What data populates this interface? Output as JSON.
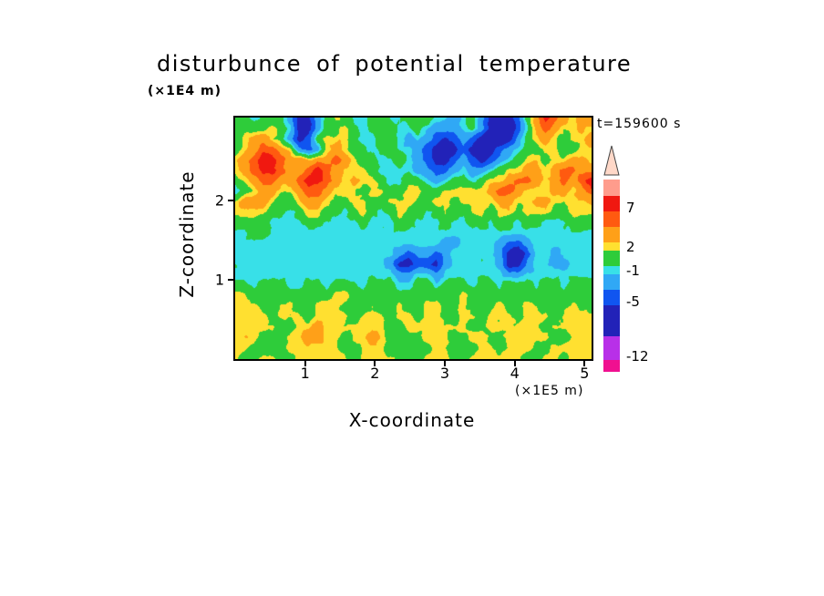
{
  "chart_data": {
    "type": "heatmap",
    "title": "disturbunce of potential temperature",
    "time_label": "t=159600 s",
    "x_axis": {
      "label": "X-coordinate",
      "unit": "(×1E5 m)",
      "ticks": [
        1,
        2,
        3,
        4,
        5
      ],
      "range": [
        0,
        5.1
      ]
    },
    "y_axis": {
      "label": "Z-coordinate",
      "unit": "(×1E4 m)",
      "ticks": [
        1,
        2
      ],
      "range": [
        0,
        3.05
      ]
    },
    "value_label": "potential temperature disturbance",
    "colorbar_tick_values": [
      7,
      2,
      -1,
      -5,
      -12
    ],
    "level_bounds": [
      -12,
      -9,
      -5,
      -3,
      -1,
      0,
      2,
      3,
      5,
      7,
      9
    ],
    "level_colors": [
      "#F01090",
      "#B830E8",
      "#2222B8",
      "#1055F0",
      "#30A8F5",
      "#38E0E8",
      "#2ECC3A",
      "#FFE030",
      "#FFA018",
      "#FF5A10",
      "#F01810",
      "#FF9C8C"
    ],
    "colorbar": {
      "tip_color": "#FFD8C8",
      "segments": [
        {
          "color": "#FF9C8C",
          "height": 18
        },
        {
          "color": "#F01810",
          "height": 17
        },
        {
          "color": "#FF5A10",
          "height": 17
        },
        {
          "color": "#FFA018",
          "height": 17
        },
        {
          "color": "#FFE030",
          "height": 9
        },
        {
          "color": "#2ECC3A",
          "height": 17
        },
        {
          "color": "#38E0E8",
          "height": 9
        },
        {
          "color": "#30A8F5",
          "height": 17
        },
        {
          "color": "#1055F0",
          "height": 17
        },
        {
          "color": "#2222B8",
          "height": 34
        },
        {
          "color": "#B830E8",
          "height": 26
        },
        {
          "color": "#F01090",
          "height": 13
        }
      ],
      "tick_labels": [
        {
          "label": "7",
          "offset": 35
        },
        {
          "label": "2",
          "offset": 78
        },
        {
          "label": "-1",
          "offset": 104
        },
        {
          "label": "-5",
          "offset": 138
        },
        {
          "label": "-12",
          "offset": 198
        }
      ]
    },
    "grid": {
      "cols": 40,
      "rows": 24,
      "description": "approx field values, rows top(z=3.05) to bottom(z=0), cols x=0..5.1",
      "values": [
        [
          1,
          1,
          -0.5,
          1,
          1,
          1,
          -2,
          -6,
          -6,
          -2,
          1,
          2.5,
          1,
          -0.5,
          -0.5,
          1,
          1,
          -0.5,
          -0.5,
          1,
          1,
          1,
          -0.5,
          -0.5,
          -2,
          -0.5,
          1,
          -2,
          -6,
          -8,
          -6,
          -4,
          1,
          4,
          8,
          6,
          4,
          2.5,
          4,
          4
        ],
        [
          1,
          1,
          1,
          1,
          2.5,
          1,
          -0.5,
          -6,
          -6,
          -2,
          1,
          1,
          2.5,
          1,
          -0.5,
          1,
          1,
          1,
          -0.5,
          -0.5,
          1,
          -0.5,
          -2,
          -2,
          -2,
          -0.5,
          1,
          -2,
          -6,
          -8,
          -8,
          -4,
          -0.5,
          4,
          6,
          4,
          2.5,
          2.5,
          4,
          2.5
        ],
        [
          1,
          2.5,
          4,
          4,
          2.5,
          1,
          -2,
          -6,
          -4,
          1,
          2.5,
          2.5,
          2.5,
          1,
          -0.5,
          -0.5,
          1,
          1,
          -0.5,
          -2,
          -0.5,
          -2,
          -4,
          -6,
          -4,
          -2,
          -4,
          -6,
          -8,
          -8,
          -6,
          -2,
          1,
          2.5,
          4,
          2.5,
          1,
          2.5,
          2.5,
          4
        ],
        [
          1,
          2.5,
          4,
          6,
          6,
          4,
          2.5,
          -2,
          -4,
          -2,
          2.5,
          4,
          2.5,
          1,
          1,
          -0.5,
          1,
          1,
          -0.5,
          -0.5,
          -2,
          -4,
          -6,
          -8,
          -6,
          -4,
          -6,
          -8,
          -6,
          -4,
          -2,
          -0.5,
          1,
          1,
          2.5,
          2.5,
          1,
          1,
          2.5,
          2.5
        ],
        [
          2.5,
          4,
          6,
          8,
          8,
          6,
          4,
          4,
          2.5,
          4,
          4,
          6,
          4,
          2.5,
          1,
          1,
          -0.5,
          -0.5,
          1,
          -0.5,
          -2,
          -4,
          -6,
          -6,
          -4,
          -2,
          -4,
          -6,
          -4,
          -2,
          -0.5,
          1,
          2.5,
          2.5,
          1,
          2.5,
          2.5,
          4,
          4,
          2.5
        ],
        [
          2.5,
          4,
          6,
          8,
          8,
          6,
          4,
          4,
          6,
          8,
          6,
          4,
          2.5,
          2.5,
          2.5,
          1,
          -0.5,
          -0.5,
          -0.5,
          -0.5,
          -2,
          -2,
          -4,
          -4,
          -2,
          -0.5,
          -2,
          -2,
          -0.5,
          1,
          2.5,
          2.5,
          4,
          4,
          2.5,
          4,
          6,
          6,
          4,
          4
        ],
        [
          1,
          2.5,
          4,
          6,
          6,
          4,
          4,
          6,
          8,
          8,
          6,
          4,
          2.5,
          4,
          2.5,
          2.5,
          1,
          -0.5,
          -0.5,
          1,
          1,
          -0.5,
          -2,
          -0.5,
          1,
          1,
          -0.5,
          1,
          2.5,
          2.5,
          4,
          6,
          6,
          4,
          2.5,
          4,
          6,
          4,
          6,
          8
        ],
        [
          -0.5,
          1,
          2.5,
          4,
          4,
          2.5,
          2.5,
          4,
          6,
          6,
          4,
          2.5,
          2.5,
          2.5,
          1,
          2.5,
          2.5,
          1,
          1,
          2.5,
          2.5,
          1,
          1,
          2.5,
          2.5,
          2.5,
          2.5,
          2.5,
          4,
          6,
          6,
          4,
          2.5,
          2.5,
          2.5,
          4,
          4,
          2.5,
          4,
          6
        ],
        [
          2.5,
          4,
          4,
          4,
          2.5,
          1,
          1,
          2.5,
          4,
          4,
          2.5,
          1,
          1,
          2.5,
          2.5,
          1,
          1,
          2.5,
          2.5,
          2.5,
          1,
          1,
          2.5,
          2.5,
          1,
          2.5,
          2.5,
          2.5,
          2.5,
          4,
          4,
          2.5,
          2.5,
          4,
          4,
          2.5,
          2.5,
          2.5,
          2.5,
          4
        ],
        [
          2.5,
          2.5,
          2.5,
          2.5,
          1,
          1,
          -0.5,
          1,
          2.5,
          2.5,
          1,
          1,
          -0.5,
          1,
          2.5,
          1,
          -0.5,
          1,
          2.5,
          1,
          1,
          -0.5,
          1,
          2.5,
          1,
          1,
          2.5,
          2.5,
          1,
          2.5,
          2.5,
          1,
          2.5,
          2.5,
          2.5,
          1,
          1,
          2.5,
          2.5,
          2.5
        ],
        [
          1,
          1,
          1,
          1,
          -0.5,
          -0.5,
          -0.5,
          -0.5,
          1,
          1,
          -0.5,
          -0.5,
          -0.5,
          -0.5,
          1,
          -0.5,
          -0.5,
          -0.5,
          1,
          1,
          -0.5,
          -0.5,
          -0.5,
          1,
          -0.5,
          -0.5,
          1,
          1,
          -0.5,
          1,
          1,
          -0.5,
          1,
          1,
          -0.5,
          -0.5,
          -0.5,
          1,
          1,
          1
        ],
        [
          -0.5,
          -0.5,
          1,
          1,
          -0.5,
          -0.5,
          -0.5,
          -0.5,
          -0.5,
          -0.5,
          -0.5,
          -0.5,
          -0.5,
          -0.5,
          -0.5,
          -0.5,
          -0.5,
          -0.5,
          -0.5,
          -0.5,
          -0.5,
          -0.5,
          -0.5,
          -0.5,
          -0.5,
          -0.5,
          -0.5,
          -0.5,
          -0.5,
          -0.5,
          -0.5,
          -0.5,
          -0.5,
          -0.5,
          -0.5,
          -0.5,
          -0.5,
          -0.5,
          -0.5,
          -0.5
        ],
        [
          -0.5,
          -0.5,
          -0.5,
          -0.5,
          -0.5,
          -0.5,
          -0.5,
          -0.5,
          -0.5,
          -0.5,
          -0.5,
          -0.5,
          -0.5,
          -0.5,
          -0.5,
          -0.5,
          -0.5,
          -0.5,
          -0.5,
          -0.5,
          -0.5,
          -0.5,
          -0.5,
          -2,
          -2,
          -0.5,
          -0.5,
          -0.5,
          -0.5,
          -2,
          -4,
          -4,
          -2,
          -0.5,
          -0.5,
          -0.5,
          -0.5,
          -0.5,
          -0.5,
          -0.5
        ],
        [
          -0.5,
          -0.5,
          -0.5,
          -0.5,
          -0.5,
          -0.5,
          -0.5,
          -0.5,
          -0.5,
          -0.5,
          -0.5,
          -0.5,
          -0.5,
          -0.5,
          -0.5,
          -0.5,
          -0.5,
          -0.5,
          -2,
          -4,
          -2,
          -2,
          -4,
          -2,
          -0.5,
          -0.5,
          -0.5,
          -0.5,
          -0.5,
          -2,
          -6,
          -8,
          -4,
          -0.5,
          -0.5,
          -2,
          -0.5,
          -0.5,
          -0.5,
          -0.5
        ],
        [
          -0.5,
          -0.5,
          -0.5,
          -0.5,
          -0.5,
          -0.5,
          -0.5,
          -0.5,
          -0.5,
          -0.5,
          -0.5,
          -0.5,
          -0.5,
          -0.5,
          -0.5,
          -0.5,
          -0.5,
          -2,
          -6,
          -6,
          -4,
          -4,
          -6,
          -2,
          -0.5,
          -0.5,
          -0.5,
          -0.5,
          -0.5,
          -2,
          -6,
          -6,
          -2,
          -0.5,
          -0.5,
          -2,
          -2,
          -0.5,
          -0.5,
          -0.5
        ],
        [
          -0.5,
          -0.5,
          -0.5,
          -0.5,
          -0.5,
          -0.5,
          -0.5,
          -0.5,
          -0.5,
          -0.5,
          -0.5,
          -0.5,
          -0.5,
          -0.5,
          -0.5,
          -0.5,
          -0.5,
          -0.5,
          -2,
          -2,
          -0.5,
          -0.5,
          -2,
          -0.5,
          -0.5,
          -0.5,
          -0.5,
          -0.5,
          -0.5,
          -0.5,
          -2,
          -2,
          -0.5,
          -0.5,
          -0.5,
          -0.5,
          -0.5,
          -0.5,
          -0.5,
          -0.5
        ],
        [
          1,
          1,
          -0.5,
          1,
          1,
          1,
          -0.5,
          -0.5,
          1,
          1,
          -0.5,
          1,
          1,
          1,
          -0.5,
          1,
          1,
          1,
          -0.5,
          -0.5,
          1,
          1,
          -0.5,
          1,
          1,
          1,
          -0.5,
          1,
          1,
          -0.5,
          1,
          1,
          1,
          -0.5,
          1,
          1,
          -0.5,
          1,
          1,
          1
        ],
        [
          2.5,
          2.5,
          1,
          1,
          1,
          1,
          1,
          1,
          1,
          1,
          1,
          2.5,
          2.5,
          1,
          1,
          1,
          1,
          1,
          1,
          1,
          1,
          1,
          1,
          1,
          1,
          2.5,
          1,
          1,
          1,
          1,
          1,
          1,
          1,
          1,
          1,
          1,
          1,
          1,
          1,
          1
        ],
        [
          2.5,
          2.5,
          2.5,
          1,
          1,
          2.5,
          2.5,
          1,
          1,
          2.5,
          2.5,
          2.5,
          1,
          1,
          1,
          2.5,
          1,
          1,
          2.5,
          1,
          1,
          2.5,
          2.5,
          1,
          1,
          2.5,
          1,
          1,
          1,
          2.5,
          1,
          1,
          2.5,
          2.5,
          1,
          1,
          1,
          2.5,
          1,
          1
        ],
        [
          2.5,
          2.5,
          2.5,
          2.5,
          1,
          2.5,
          2.5,
          2.5,
          1,
          2.5,
          2.5,
          2.5,
          2.5,
          1,
          2.5,
          2.5,
          2.5,
          1,
          2.5,
          2.5,
          1,
          2.5,
          2.5,
          1,
          1,
          2.5,
          2.5,
          1,
          2.5,
          2.5,
          2.5,
          1,
          2.5,
          2.5,
          2.5,
          1,
          2.5,
          2.5,
          2.5,
          2.5
        ],
        [
          2.5,
          2.5,
          2.5,
          2.5,
          2.5,
          1,
          1,
          2.5,
          2.5,
          4,
          2.5,
          2.5,
          2.5,
          2.5,
          2.5,
          2.5,
          2.5,
          1,
          1,
          2.5,
          2.5,
          2.5,
          2.5,
          2.5,
          2.5,
          2.5,
          1,
          1,
          2.5,
          2.5,
          2.5,
          2.5,
          2.5,
          2.5,
          1,
          2.5,
          2.5,
          2.5,
          2.5,
          2.5
        ],
        [
          2.5,
          2.5,
          2.5,
          1,
          1,
          1,
          2.5,
          2.5,
          4,
          4,
          2.5,
          2.5,
          1,
          2.5,
          2.5,
          4,
          2.5,
          1,
          1,
          1,
          1,
          2.5,
          2.5,
          2.5,
          1,
          1,
          2.5,
          2.5,
          1,
          1,
          2.5,
          2.5,
          2.5,
          2.5,
          2.5,
          1,
          1,
          2.5,
          2.5,
          2.5
        ],
        [
          2.5,
          2.5,
          1,
          1,
          1,
          1,
          2.5,
          2.5,
          2.5,
          2.5,
          2.5,
          2.5,
          1,
          1,
          2.5,
          2.5,
          2.5,
          1,
          1,
          1,
          1,
          1,
          2.5,
          2.5,
          1,
          1,
          1,
          2.5,
          2.5,
          1,
          2.5,
          2.5,
          2.5,
          1,
          1,
          2.5,
          2.5,
          2.5,
          2.5,
          2.5
        ],
        [
          2.5,
          1,
          1,
          2.5,
          2.5,
          1,
          1,
          2.5,
          2.5,
          2.5,
          2.5,
          2.5,
          2.5,
          1,
          2.5,
          2.5,
          2.5,
          2.5,
          1,
          1,
          1,
          2.5,
          2.5,
          2.5,
          1,
          1,
          2.5,
          2.5,
          2.5,
          2.5,
          2.5,
          2.5,
          1,
          1,
          2.5,
          2.5,
          1,
          2.5,
          2.5,
          2.5
        ]
      ]
    }
  }
}
